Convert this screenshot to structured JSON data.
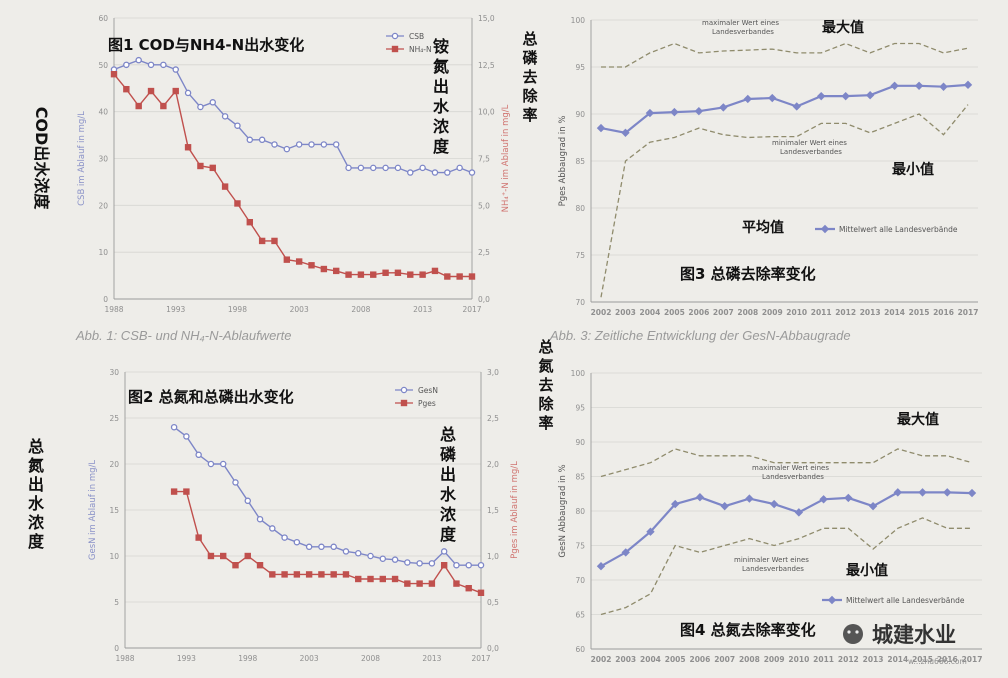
{
  "colors": {
    "blue": "#7d86c7",
    "red": "#c0504d",
    "dash": "#8f8b6c",
    "tick": "#8f8f8f",
    "captionGray": "#9a9a9a",
    "blueLabel": "#8a92c8",
    "redLabel": "#d07470"
  },
  "captions": {
    "fig1": "Abb. 1: CSB- und NH₄-N-Ablaufwerte",
    "fig3": "Abb. 3: Zeitliche Entwicklung der GesN-Abbaugrade"
  },
  "watermark": {
    "icon": "wechat-icon",
    "text": "城建水业",
    "url": "w...zhu666.com"
  },
  "chart_data": [
    {
      "type": "line",
      "title": "图1  COD与NH4-N出水变化",
      "left_annotation": "COD出水浓度",
      "right_annotation": "铵氮出水浓度",
      "ylabel": "CSB im Ablauf in mg/L",
      "y2label": "NH₄⁺-N im Ablauf in mg/L",
      "xlim": [
        1988,
        2017
      ],
      "ylim": [
        0,
        60
      ],
      "y2lim": [
        0,
        15
      ],
      "xticks": [
        "1988",
        "1993",
        "1998",
        "2003",
        "2008",
        "2013",
        "2017"
      ],
      "yticks": [
        "0",
        "10",
        "20",
        "30",
        "40",
        "50",
        "60"
      ],
      "y2ticks": [
        "0,0",
        "2,5",
        "5,0",
        "7,5",
        "10,0",
        "12,5",
        "15,0"
      ],
      "legend_position": "top-right",
      "series": [
        {
          "name": "CSB",
          "axis": "left",
          "color": "#7d86c7",
          "marker": "circle",
          "x": [
            1988,
            1989,
            1990,
            1991,
            1992,
            1993,
            1994,
            1995,
            1996,
            1997,
            1998,
            1999,
            2000,
            2001,
            2002,
            2003,
            2004,
            2005,
            2006,
            2007,
            2008,
            2009,
            2010,
            2011,
            2012,
            2013,
            2014,
            2015,
            2016,
            2017
          ],
          "y": [
            49,
            50,
            51,
            50,
            50,
            49,
            44,
            41,
            42,
            39,
            37,
            34,
            34,
            33,
            32,
            33,
            33,
            33,
            33,
            28,
            28,
            28,
            28,
            28,
            27,
            28,
            27,
            27,
            28,
            27
          ]
        },
        {
          "name": "NH₄-N",
          "axis": "right",
          "color": "#c0504d",
          "marker": "square",
          "x": [
            1988,
            1989,
            1990,
            1991,
            1992,
            1993,
            1994,
            1995,
            1996,
            1997,
            1998,
            1999,
            2000,
            2001,
            2002,
            2003,
            2004,
            2005,
            2006,
            2007,
            2008,
            2009,
            2010,
            2011,
            2012,
            2013,
            2014,
            2015,
            2016,
            2017
          ],
          "y": [
            12.0,
            11.2,
            10.3,
            11.1,
            10.3,
            11.1,
            8.1,
            7.1,
            7.0,
            6.0,
            5.1,
            4.1,
            3.1,
            3.1,
            2.1,
            2.0,
            1.8,
            1.6,
            1.5,
            1.3,
            1.3,
            1.3,
            1.4,
            1.4,
            1.3,
            1.3,
            1.5,
            1.2,
            1.2,
            1.2
          ]
        }
      ]
    },
    {
      "type": "line",
      "title": "图2  总氮和总磷出水变化",
      "left_annotation": "总氮出水浓度",
      "right_annotation": "总磷出水浓度",
      "ylabel": "GesN im Ablauf in mg/L",
      "y2label": "Pges im Ablauf in mg/L",
      "xlim": [
        1988,
        2017
      ],
      "ylim": [
        0,
        30
      ],
      "y2lim": [
        0,
        3.0
      ],
      "xticks": [
        "1988",
        "1993",
        "1998",
        "2003",
        "2008",
        "2013",
        "2017"
      ],
      "yticks": [
        "0",
        "5",
        "10",
        "15",
        "20",
        "25",
        "30"
      ],
      "y2ticks": [
        "0,0",
        "0,5",
        "1,0",
        "1,5",
        "2,0",
        "2,5",
        "3,0"
      ],
      "legend_position": "top-right",
      "series": [
        {
          "name": "GesN",
          "axis": "left",
          "color": "#7d86c7",
          "marker": "circle",
          "x": [
            1992,
            1993,
            1994,
            1995,
            1996,
            1997,
            1998,
            1999,
            2000,
            2001,
            2002,
            2003,
            2004,
            2005,
            2006,
            2007,
            2008,
            2009,
            2010,
            2011,
            2012,
            2013,
            2014,
            2015,
            2016,
            2017
          ],
          "y": [
            24,
            23,
            21,
            20,
            20,
            18,
            16,
            14,
            13,
            12,
            11.5,
            11,
            11,
            11,
            10.5,
            10.3,
            10,
            9.7,
            9.6,
            9.3,
            9.2,
            9.2,
            10.5,
            9,
            9,
            9
          ]
        },
        {
          "name": "Pges",
          "axis": "right",
          "color": "#c0504d",
          "marker": "square",
          "x": [
            1992,
            1993,
            1994,
            1995,
            1996,
            1997,
            1998,
            1999,
            2000,
            2001,
            2002,
            2003,
            2004,
            2005,
            2006,
            2007,
            2008,
            2009,
            2010,
            2011,
            2012,
            2013,
            2014,
            2015,
            2016,
            2017
          ],
          "y": [
            1.7,
            1.7,
            1.2,
            1.0,
            1.0,
            0.9,
            1.0,
            0.9,
            0.8,
            0.8,
            0.8,
            0.8,
            0.8,
            0.8,
            0.8,
            0.75,
            0.75,
            0.75,
            0.75,
            0.7,
            0.7,
            0.7,
            0.9,
            0.7,
            0.65,
            0.6
          ]
        }
      ]
    },
    {
      "type": "line",
      "title": "图3  总磷去除率变化",
      "left_annotation": "总磷去除率",
      "ylabel": "Pges Abbaugrad in %",
      "xlim": [
        2002,
        2017
      ],
      "ylim": [
        70,
        100
      ],
      "categories": [
        "2002",
        "2003",
        "2004",
        "2005",
        "2006",
        "2007",
        "2008",
        "2009",
        "2010",
        "2011",
        "2012",
        "2013",
        "2014",
        "2015",
        "2016",
        "2017"
      ],
      "yticks": [
        "70",
        "75",
        "80",
        "85",
        "90",
        "95",
        "100"
      ],
      "legend_position": "bottom-right",
      "annotations": {
        "max": "最大值",
        "min": "最小值",
        "avg": "平均值",
        "max_note": [
          "maximaler Wert eines",
          "Landesverbandes"
        ],
        "min_note": [
          "minimaler Wert eines",
          "Landesverbandes"
        ]
      },
      "series": [
        {
          "name": "Mittelwert alle Landesverbände",
          "color": "#7d86c7",
          "marker": "diamond",
          "values": [
            88.5,
            88.0,
            90.1,
            90.2,
            90.3,
            90.7,
            91.6,
            91.7,
            90.8,
            91.9,
            91.9,
            92.0,
            93.0,
            93.0,
            92.9,
            93.1
          ]
        },
        {
          "role": "max",
          "dashed": true,
          "color": "#8f8b6c",
          "values": [
            95,
            95,
            96.5,
            97.5,
            96.5,
            96.7,
            96.8,
            96.9,
            96.5,
            96.5,
            97.5,
            96.5,
            97.5,
            97.5,
            96.5,
            97
          ]
        },
        {
          "role": "min",
          "dashed": true,
          "color": "#8f8b6c",
          "values": [
            70.5,
            85,
            87,
            87.5,
            88.5,
            87.8,
            87.5,
            87.6,
            87.6,
            89,
            89,
            88,
            89,
            90,
            87.8,
            91
          ]
        }
      ]
    },
    {
      "type": "line",
      "title": "图4  总氮去除率变化",
      "left_annotation": "总氮去除率",
      "ylabel": "GesN Abbaugrad in %",
      "xlim": [
        2002,
        2017
      ],
      "ylim": [
        60,
        100
      ],
      "categories": [
        "2002",
        "2003",
        "2004",
        "2005",
        "2006",
        "2007",
        "2008",
        "2009",
        "2010",
        "2011",
        "2012",
        "2013",
        "2014",
        "2015",
        "2016",
        "2017"
      ],
      "yticks": [
        "60",
        "65",
        "70",
        "75",
        "80",
        "85",
        "90",
        "95",
        "100"
      ],
      "legend_position": "bottom-right",
      "annotations": {
        "max": "最大值",
        "min": "最小值",
        "max_note": [
          "maximaler Wert eines",
          "Landesverbandes"
        ],
        "min_note": [
          "minimaler Wert eines",
          "Landesverbandes"
        ]
      },
      "series": [
        {
          "name": "Mittelwert alle Landesverbände",
          "color": "#7d86c7",
          "marker": "diamond",
          "values": [
            72,
            74,
            77,
            81,
            82,
            80.7,
            81.8,
            81,
            79.8,
            81.7,
            81.9,
            80.7,
            82.7,
            82.7,
            82.7,
            82.6
          ]
        },
        {
          "role": "max",
          "dashed": true,
          "color": "#8f8b6c",
          "values": [
            85,
            86,
            87,
            89,
            88,
            88,
            88,
            87,
            87,
            87,
            87,
            87,
            89,
            88,
            88,
            87
          ]
        },
        {
          "role": "min",
          "dashed": true,
          "color": "#8f8b6c",
          "values": [
            65,
            66,
            68,
            75,
            74,
            75,
            76,
            75,
            76,
            77.5,
            77.5,
            74.5,
            77.5,
            79,
            77.5,
            77.5
          ]
        }
      ]
    }
  ]
}
